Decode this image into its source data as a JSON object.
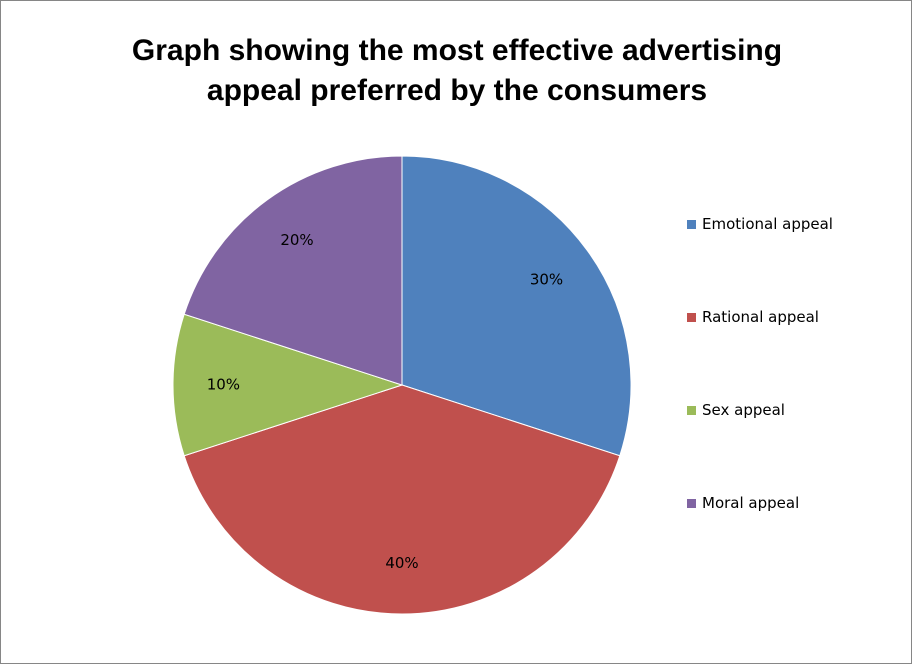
{
  "chart_data": {
    "type": "pie",
    "title_lines": [
      "Graph showing the most effective advertising",
      "appeal preferred by the consumers"
    ],
    "slices": [
      {
        "name": "Emotional appeal",
        "value": 30,
        "label": "30%",
        "color": "#4F81BD"
      },
      {
        "name": "Rational appeal",
        "value": 40,
        "label": "40%",
        "color": "#C0504D"
      },
      {
        "name": "Sex appeal",
        "value": 10,
        "label": "10%",
        "color": "#9BBB59"
      },
      {
        "name": "Moral appeal",
        "value": 20,
        "label": "20%",
        "color": "#8064A2"
      }
    ],
    "legend_placement": "right"
  }
}
